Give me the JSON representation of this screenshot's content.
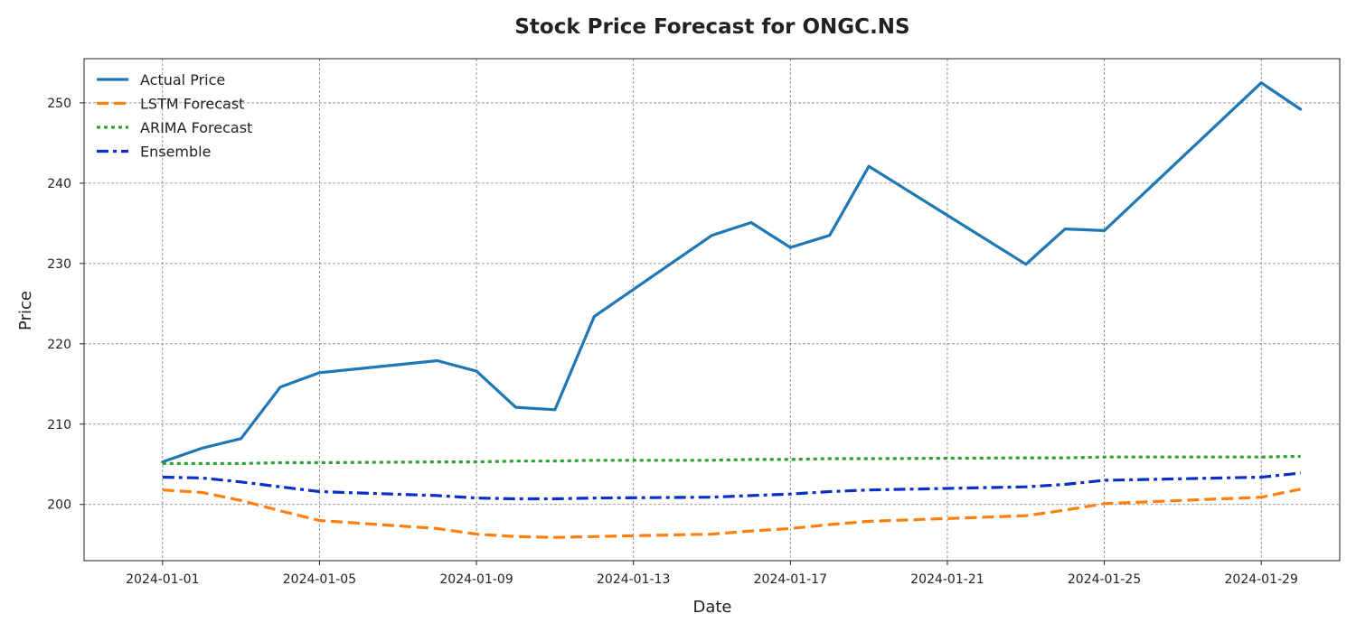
{
  "chart_data": {
    "type": "line",
    "title": "Stock Price Forecast for ONGC.NS",
    "xlabel": "Date",
    "ylabel": "Price",
    "xlim": [
      "2023-12-30",
      "2024-01-31"
    ],
    "ylim": [
      193.0,
      255.5
    ],
    "x_ticks": [
      "2024-01-01",
      "2024-01-05",
      "2024-01-09",
      "2024-01-13",
      "2024-01-17",
      "2024-01-21",
      "2024-01-25",
      "2024-01-29"
    ],
    "y_ticks": [
      200,
      210,
      220,
      230,
      240,
      250
    ],
    "grid": true,
    "legend_position": "top-left",
    "series": [
      {
        "name": "Actual Price",
        "color": "#1f77b4",
        "style": "solid",
        "points": [
          [
            "2024-01-01",
            205.3
          ],
          [
            "2024-01-02",
            207.0
          ],
          [
            "2024-01-03",
            208.2
          ],
          [
            "2024-01-04",
            214.6
          ],
          [
            "2024-01-05",
            216.4
          ],
          [
            "2024-01-08",
            217.9
          ],
          [
            "2024-01-09",
            216.6
          ],
          [
            "2024-01-10",
            212.1
          ],
          [
            "2024-01-11",
            211.8
          ],
          [
            "2024-01-12",
            223.4
          ],
          [
            "2024-01-15",
            233.5
          ],
          [
            "2024-01-16",
            235.1
          ],
          [
            "2024-01-17",
            232.0
          ],
          [
            "2024-01-18",
            233.5
          ],
          [
            "2024-01-19",
            242.1
          ],
          [
            "2024-01-23",
            229.9
          ],
          [
            "2024-01-24",
            234.3
          ],
          [
            "2024-01-25",
            234.1
          ],
          [
            "2024-01-29",
            252.5
          ],
          [
            "2024-01-30",
            249.2
          ]
        ]
      },
      {
        "name": "LSTM Forecast",
        "color": "#ff7f0e",
        "style": "dashed",
        "points": [
          [
            "2024-01-01",
            201.8
          ],
          [
            "2024-01-02",
            201.5
          ],
          [
            "2024-01-03",
            200.5
          ],
          [
            "2024-01-04",
            199.2
          ],
          [
            "2024-01-05",
            198.0
          ],
          [
            "2024-01-08",
            197.0
          ],
          [
            "2024-01-09",
            196.3
          ],
          [
            "2024-01-10",
            196.0
          ],
          [
            "2024-01-11",
            195.9
          ],
          [
            "2024-01-12",
            196.0
          ],
          [
            "2024-01-15",
            196.3
          ],
          [
            "2024-01-16",
            196.7
          ],
          [
            "2024-01-17",
            197.0
          ],
          [
            "2024-01-18",
            197.5
          ],
          [
            "2024-01-19",
            197.9
          ],
          [
            "2024-01-23",
            198.6
          ],
          [
            "2024-01-24",
            199.3
          ],
          [
            "2024-01-25",
            200.1
          ],
          [
            "2024-01-29",
            200.9
          ],
          [
            "2024-01-30",
            201.9
          ]
        ]
      },
      {
        "name": "ARIMA Forecast",
        "color": "#2ca02c",
        "style": "dotted",
        "points": [
          [
            "2024-01-01",
            205.1
          ],
          [
            "2024-01-02",
            205.1
          ],
          [
            "2024-01-03",
            205.1
          ],
          [
            "2024-01-04",
            205.2
          ],
          [
            "2024-01-05",
            205.2
          ],
          [
            "2024-01-08",
            205.3
          ],
          [
            "2024-01-09",
            205.3
          ],
          [
            "2024-01-10",
            205.4
          ],
          [
            "2024-01-11",
            205.4
          ],
          [
            "2024-01-12",
            205.5
          ],
          [
            "2024-01-15",
            205.5
          ],
          [
            "2024-01-16",
            205.6
          ],
          [
            "2024-01-17",
            205.6
          ],
          [
            "2024-01-18",
            205.7
          ],
          [
            "2024-01-19",
            205.7
          ],
          [
            "2024-01-23",
            205.8
          ],
          [
            "2024-01-24",
            205.8
          ],
          [
            "2024-01-25",
            205.9
          ],
          [
            "2024-01-29",
            205.9
          ],
          [
            "2024-01-30",
            206.0
          ]
        ]
      },
      {
        "name": "Ensemble",
        "color": "#0a2fc8",
        "style": "dashdot",
        "points": [
          [
            "2024-01-01",
            203.4
          ],
          [
            "2024-01-02",
            203.3
          ],
          [
            "2024-01-03",
            202.8
          ],
          [
            "2024-01-04",
            202.2
          ],
          [
            "2024-01-05",
            201.6
          ],
          [
            "2024-01-08",
            201.1
          ],
          [
            "2024-01-09",
            200.8
          ],
          [
            "2024-01-10",
            200.7
          ],
          [
            "2024-01-11",
            200.7
          ],
          [
            "2024-01-12",
            200.8
          ],
          [
            "2024-01-15",
            200.9
          ],
          [
            "2024-01-16",
            201.1
          ],
          [
            "2024-01-17",
            201.3
          ],
          [
            "2024-01-18",
            201.6
          ],
          [
            "2024-01-19",
            201.8
          ],
          [
            "2024-01-23",
            202.2
          ],
          [
            "2024-01-24",
            202.5
          ],
          [
            "2024-01-25",
            203.0
          ],
          [
            "2024-01-29",
            203.4
          ],
          [
            "2024-01-30",
            203.9
          ]
        ]
      }
    ]
  }
}
